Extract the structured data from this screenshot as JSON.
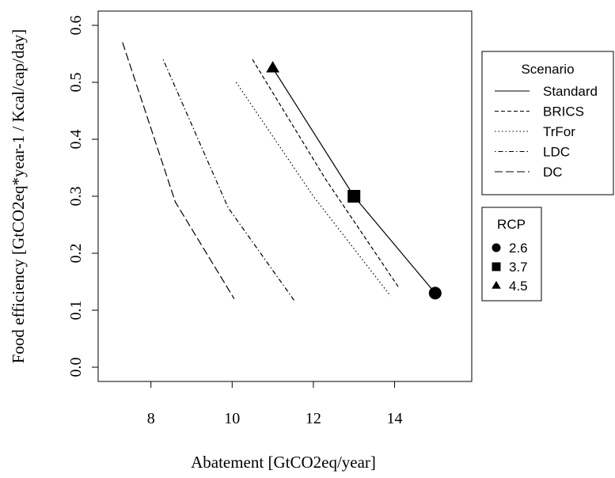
{
  "chart_data": {
    "type": "line",
    "xlabel": "Abatement [GtCO2eq/year]",
    "ylabel": "Food efficiency [GtCO2eq*year-1 / Kcal/cap/day]",
    "xlim": [
      6.7,
      15.9
    ],
    "ylim": [
      -0.025,
      0.625
    ],
    "x_ticks": [
      8,
      10,
      12,
      14
    ],
    "y_ticks": [
      0.0,
      0.1,
      0.2,
      0.3,
      0.4,
      0.5,
      0.6
    ],
    "x_tick_labels": [
      "8",
      "10",
      "12",
      "14"
    ],
    "y_tick_labels": [
      "0.0",
      "0.1",
      "0.2",
      "0.3",
      "0.4",
      "0.5",
      "0.6"
    ],
    "grid": false,
    "series": [
      {
        "name": "Standard",
        "dash": "solid",
        "points": [
          [
            11.0,
            0.525
          ],
          [
            13.0,
            0.3
          ],
          [
            15.0,
            0.13
          ]
        ]
      },
      {
        "name": "BRICS",
        "dash": "dashed",
        "points": [
          [
            10.5,
            0.54
          ],
          [
            12.3,
            0.33
          ],
          [
            14.1,
            0.14
          ]
        ]
      },
      {
        "name": "TrFor",
        "dash": "dotted",
        "points": [
          [
            10.1,
            0.5
          ],
          [
            12.0,
            0.3
          ],
          [
            13.9,
            0.125
          ]
        ]
      },
      {
        "name": "LDC",
        "dash": "dotdash",
        "points": [
          [
            8.3,
            0.54
          ],
          [
            9.9,
            0.28
          ],
          [
            11.55,
            0.115
          ]
        ]
      },
      {
        "name": "DC",
        "dash": "longdash",
        "points": [
          [
            7.3,
            0.57
          ],
          [
            8.6,
            0.29
          ],
          [
            10.05,
            0.12
          ]
        ]
      }
    ],
    "markers": [
      {
        "rcp": "2.6",
        "shape": "circle",
        "x": 15.0,
        "y": 0.13
      },
      {
        "rcp": "3.7",
        "shape": "square",
        "x": 13.0,
        "y": 0.3
      },
      {
        "rcp": "4.5",
        "shape": "triangle",
        "x": 11.0,
        "y": 0.525
      }
    ],
    "legends": [
      {
        "title": "Scenario",
        "placement": "right-top",
        "entries": [
          "Standard",
          "BRICS",
          "TrFor",
          "LDC",
          "DC"
        ]
      },
      {
        "title": "RCP",
        "placement": "right-middle",
        "entries": [
          "2.6",
          "3.7",
          "4.5"
        ]
      }
    ],
    "colors": {
      "line": "#000000",
      "background": "#ffffff"
    }
  }
}
